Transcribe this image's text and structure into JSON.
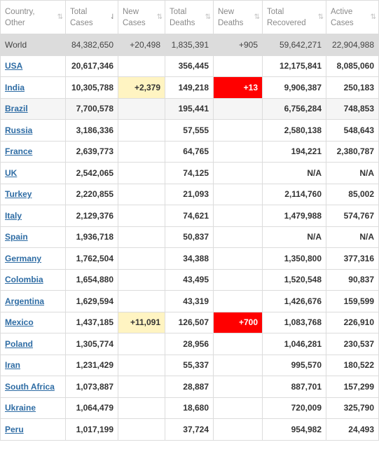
{
  "headers": [
    {
      "line1": "Country,",
      "line2": "Other",
      "sort": "⇅",
      "active": false
    },
    {
      "line1": "Total",
      "line2": "Cases",
      "sort": "⇃",
      "active": true
    },
    {
      "line1": "New",
      "line2": "Cases",
      "sort": "⇅",
      "active": false
    },
    {
      "line1": "Total",
      "line2": "Deaths",
      "sort": "⇅",
      "active": false
    },
    {
      "line1": "New",
      "line2": "Deaths",
      "sort": "⇅",
      "active": false
    },
    {
      "line1": "Total",
      "line2": "Recovered",
      "sort": "⇅",
      "active": false
    },
    {
      "line1": "Active",
      "line2": "Cases",
      "sort": "⇅",
      "active": false
    }
  ],
  "world": {
    "country": "World",
    "total_cases": "84,382,650",
    "new_cases": "+20,498",
    "total_deaths": "1,835,391",
    "new_deaths": "+905",
    "total_recovered": "59,642,271",
    "active_cases": "22,904,988"
  },
  "rows": [
    {
      "country": "USA",
      "total_cases": "20,617,346",
      "new_cases": "",
      "total_deaths": "356,445",
      "new_deaths": "",
      "total_recovered": "12,175,841",
      "active_cases": "8,085,060"
    },
    {
      "country": "India",
      "total_cases": "10,305,788",
      "new_cases": "+2,379",
      "total_deaths": "149,218",
      "new_deaths": "+13",
      "total_recovered": "9,906,387",
      "active_cases": "250,183"
    },
    {
      "country": "Brazil",
      "total_cases": "7,700,578",
      "new_cases": "",
      "total_deaths": "195,441",
      "new_deaths": "",
      "total_recovered": "6,756,284",
      "active_cases": "748,853"
    },
    {
      "country": "Russia",
      "total_cases": "3,186,336",
      "new_cases": "",
      "total_deaths": "57,555",
      "new_deaths": "",
      "total_recovered": "2,580,138",
      "active_cases": "548,643"
    },
    {
      "country": "France",
      "total_cases": "2,639,773",
      "new_cases": "",
      "total_deaths": "64,765",
      "new_deaths": "",
      "total_recovered": "194,221",
      "active_cases": "2,380,787"
    },
    {
      "country": "UK",
      "total_cases": "2,542,065",
      "new_cases": "",
      "total_deaths": "74,125",
      "new_deaths": "",
      "total_recovered": "N/A",
      "active_cases": "N/A"
    },
    {
      "country": "Turkey",
      "total_cases": "2,220,855",
      "new_cases": "",
      "total_deaths": "21,093",
      "new_deaths": "",
      "total_recovered": "2,114,760",
      "active_cases": "85,002"
    },
    {
      "country": "Italy",
      "total_cases": "2,129,376",
      "new_cases": "",
      "total_deaths": "74,621",
      "new_deaths": "",
      "total_recovered": "1,479,988",
      "active_cases": "574,767"
    },
    {
      "country": "Spain",
      "total_cases": "1,936,718",
      "new_cases": "",
      "total_deaths": "50,837",
      "new_deaths": "",
      "total_recovered": "N/A",
      "active_cases": "N/A"
    },
    {
      "country": "Germany",
      "total_cases": "1,762,504",
      "new_cases": "",
      "total_deaths": "34,388",
      "new_deaths": "",
      "total_recovered": "1,350,800",
      "active_cases": "377,316"
    },
    {
      "country": "Colombia",
      "total_cases": "1,654,880",
      "new_cases": "",
      "total_deaths": "43,495",
      "new_deaths": "",
      "total_recovered": "1,520,548",
      "active_cases": "90,837"
    },
    {
      "country": "Argentina",
      "total_cases": "1,629,594",
      "new_cases": "",
      "total_deaths": "43,319",
      "new_deaths": "",
      "total_recovered": "1,426,676",
      "active_cases": "159,599"
    },
    {
      "country": "Mexico",
      "total_cases": "1,437,185",
      "new_cases": "+11,091",
      "total_deaths": "126,507",
      "new_deaths": "+700",
      "total_recovered": "1,083,768",
      "active_cases": "226,910"
    },
    {
      "country": "Poland",
      "total_cases": "1,305,774",
      "new_cases": "",
      "total_deaths": "28,956",
      "new_deaths": "",
      "total_recovered": "1,046,281",
      "active_cases": "230,537"
    },
    {
      "country": "Iran",
      "total_cases": "1,231,429",
      "new_cases": "",
      "total_deaths": "55,337",
      "new_deaths": "",
      "total_recovered": "995,570",
      "active_cases": "180,522"
    },
    {
      "country": "South Africa",
      "total_cases": "1,073,887",
      "new_cases": "",
      "total_deaths": "28,887",
      "new_deaths": "",
      "total_recovered": "887,701",
      "active_cases": "157,299"
    },
    {
      "country": "Ukraine",
      "total_cases": "1,064,479",
      "new_cases": "",
      "total_deaths": "18,680",
      "new_deaths": "",
      "total_recovered": "720,009",
      "active_cases": "325,790"
    },
    {
      "country": "Peru",
      "total_cases": "1,017,199",
      "new_cases": "",
      "total_deaths": "37,724",
      "new_deaths": "",
      "total_recovered": "954,982",
      "active_cases": "24,493"
    }
  ],
  "colors": {
    "new_cases_bg": "#fff4c2",
    "new_deaths_bg": "#ff0000",
    "link": "#2e6ca4",
    "world_bg": "#dcdcdc"
  },
  "icons": {
    "sort": "sort-arrows-icon",
    "sort_active": "sort-descending-icon"
  }
}
